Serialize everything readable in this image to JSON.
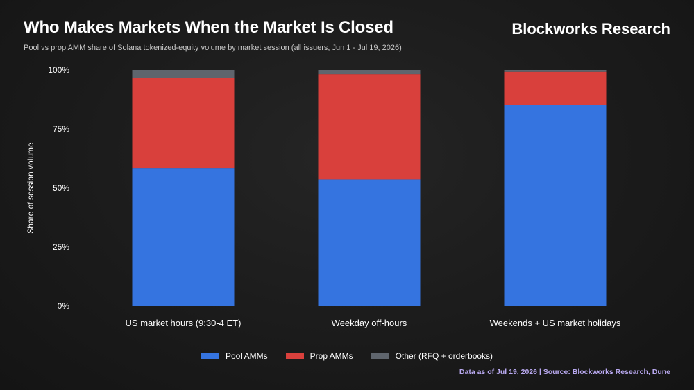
{
  "header": {
    "title": "Who Makes Markets When the Market Is Closed",
    "brand": "Blockworks Research",
    "subtitle": "Pool vs prop AMM share of Solana tokenized-equity volume by market session (all issuers, Jun 1 - Jul 19, 2026)"
  },
  "footer": {
    "source": "Data as of Jul 19, 2026 | Source: Blockworks Research, Dune"
  },
  "colors": {
    "pool": "#3574e0",
    "prop": "#d9403c",
    "other": "#5f656d",
    "source_text": "#b9a9f0"
  },
  "chart_data": {
    "type": "bar",
    "stacked": true,
    "title": "",
    "xlabel": "",
    "ylabel": "Share of session volume",
    "ylim": [
      0,
      100
    ],
    "yticks": [
      0,
      25,
      50,
      75,
      100
    ],
    "ytick_labels": [
      "0%",
      "25%",
      "50%",
      "75%",
      "100%"
    ],
    "grid": false,
    "legend_position": "bottom-center",
    "categories": [
      "US market hours (9:30-4 ET)",
      "Weekday off-hours",
      "Weekends + US market holidays"
    ],
    "series": [
      {
        "name": "Pool AMMs",
        "color": "#3574e0",
        "values": [
          58.5,
          53.7,
          85.2
        ]
      },
      {
        "name": "Prop AMMs",
        "color": "#d9403c",
        "values": [
          38.0,
          44.5,
          14.0
        ]
      },
      {
        "name": "Other (RFQ + orderbooks)",
        "color": "#5f656d",
        "values": [
          3.5,
          1.8,
          0.8
        ]
      }
    ]
  }
}
